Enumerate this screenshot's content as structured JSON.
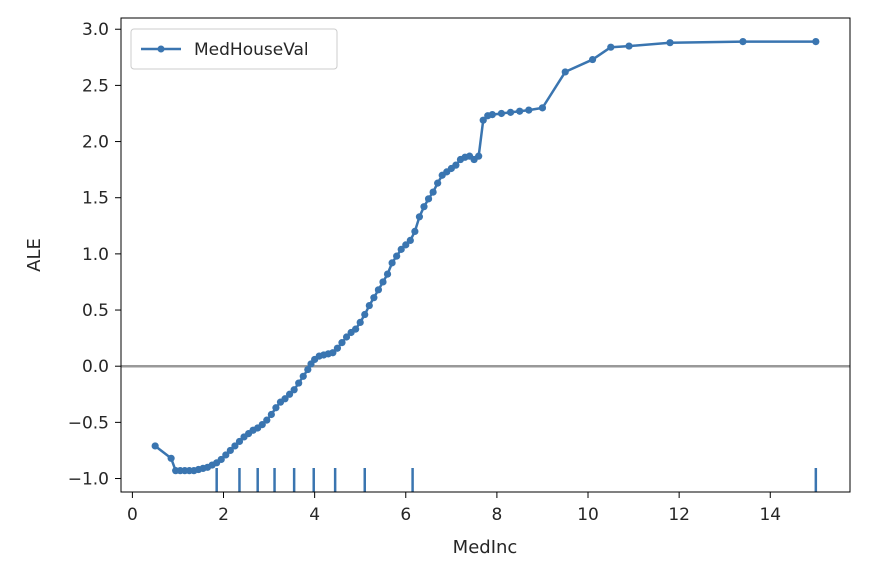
{
  "chart_data": {
    "type": "line",
    "xlabel": "MedInc",
    "ylabel": "ALE",
    "xlim": [
      -0.25,
      15.75
    ],
    "ylim": [
      -1.12,
      3.1
    ],
    "xticks": [
      0,
      2,
      4,
      6,
      8,
      10,
      12,
      14
    ],
    "xtick_labels": [
      "0",
      "2",
      "4",
      "6",
      "8",
      "10",
      "12",
      "14"
    ],
    "yticks": [
      -1.0,
      -0.5,
      0.0,
      0.5,
      1.0,
      1.5,
      2.0,
      2.5,
      3.0
    ],
    "ytick_labels": [
      "−1.0",
      "−0.5",
      "0.0",
      "0.5",
      "1.0",
      "1.5",
      "2.0",
      "2.5",
      "3.0"
    ],
    "grid": false,
    "legend_position": "upper-left",
    "reference_line": {
      "y": 0,
      "color": "#999999"
    },
    "series": [
      {
        "name": "MedHouseVal",
        "color": "#3a75b0",
        "x": [
          0.5,
          0.85,
          0.95,
          1.05,
          1.15,
          1.25,
          1.35,
          1.45,
          1.55,
          1.65,
          1.75,
          1.85,
          1.95,
          2.05,
          2.15,
          2.25,
          2.35,
          2.45,
          2.55,
          2.65,
          2.75,
          2.85,
          2.95,
          3.05,
          3.15,
          3.25,
          3.35,
          3.45,
          3.55,
          3.65,
          3.75,
          3.85,
          3.92,
          4.0,
          4.1,
          4.2,
          4.3,
          4.4,
          4.5,
          4.6,
          4.7,
          4.8,
          4.9,
          5.0,
          5.1,
          5.2,
          5.3,
          5.4,
          5.5,
          5.6,
          5.7,
          5.8,
          5.9,
          6.0,
          6.1,
          6.2,
          6.3,
          6.4,
          6.5,
          6.6,
          6.7,
          6.8,
          6.9,
          7.0,
          7.1,
          7.2,
          7.3,
          7.4,
          7.5,
          7.6,
          7.7,
          7.8,
          7.9,
          8.1,
          8.3,
          8.5,
          8.7,
          9.0,
          9.5,
          10.1,
          10.5,
          10.9,
          11.8,
          13.4,
          15.0
        ],
        "values": [
          -0.71,
          -0.82,
          -0.93,
          -0.93,
          -0.93,
          -0.93,
          -0.93,
          -0.92,
          -0.91,
          -0.9,
          -0.88,
          -0.86,
          -0.83,
          -0.79,
          -0.75,
          -0.71,
          -0.67,
          -0.63,
          -0.6,
          -0.57,
          -0.55,
          -0.52,
          -0.48,
          -0.43,
          -0.37,
          -0.32,
          -0.29,
          -0.25,
          -0.21,
          -0.15,
          -0.09,
          -0.03,
          0.02,
          0.06,
          0.09,
          0.1,
          0.11,
          0.12,
          0.16,
          0.21,
          0.26,
          0.3,
          0.33,
          0.39,
          0.46,
          0.54,
          0.61,
          0.68,
          0.75,
          0.82,
          0.92,
          0.98,
          1.04,
          1.08,
          1.12,
          1.2,
          1.33,
          1.42,
          1.49,
          1.55,
          1.63,
          1.7,
          1.73,
          1.76,
          1.79,
          1.84,
          1.86,
          1.87,
          1.84,
          1.87,
          2.19,
          2.23,
          2.24,
          2.25,
          2.26,
          2.27,
          2.28,
          2.3,
          2.62,
          2.73,
          2.84,
          2.85,
          2.88,
          2.89,
          2.89
        ]
      }
    ],
    "rug_x": [
      1.85,
      2.35,
      2.75,
      3.12,
      3.55,
      3.98,
      4.45,
      5.1,
      6.15,
      15.0
    ]
  }
}
